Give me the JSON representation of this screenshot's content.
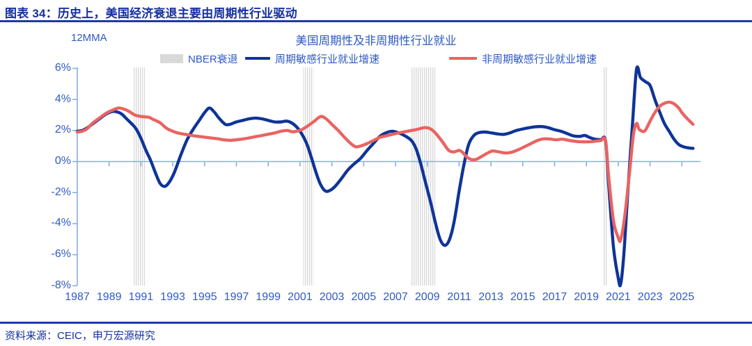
{
  "header": {
    "title": "图表 34：历史上，美国经济衰退主要由周期性行业驱动"
  },
  "footer": {
    "source": "资料来源：CEIC，申万宏源研究"
  },
  "colors": {
    "accent_blue": "#15309F",
    "plot_text_blue": "#2E59C4",
    "cyclical_line": "#0F3498",
    "noncyclical_line": "#EA6361",
    "axis_light_blue": "#85AEDF",
    "recession_band": "#D7D7D7"
  },
  "chart_data": {
    "type": "line",
    "title": "美国周期性及非周期性行业就业",
    "y_axis_note": "12MMA",
    "ylabel": "%",
    "ylim": [
      -8,
      6
    ],
    "xlim": [
      1987,
      2026.1
    ],
    "grid": false,
    "legend_position": "top",
    "y_ticks": [
      6,
      4,
      2,
      0,
      -2,
      -4,
      -6,
      -8
    ],
    "y_tick_labels": [
      "6%",
      "4%",
      "2%",
      "0%",
      "-2%",
      "-4%",
      "-6%",
      "-8%"
    ],
    "x_ticks": [
      1987,
      1989,
      1991,
      1993,
      1995,
      1997,
      1999,
      2001,
      2003,
      2005,
      2007,
      2009,
      2011,
      2013,
      2015,
      2017,
      2019,
      2021,
      2023,
      2025
    ],
    "legend": [
      {
        "label": "NBER衰退",
        "type": "band",
        "color": "#D9D9D9"
      },
      {
        "label": "周期敏感行业就业增速",
        "type": "line",
        "color": "#0F3498"
      },
      {
        "label": "非周期敏感行业就业增速",
        "type": "line",
        "color": "#EA6361"
      }
    ],
    "recession_bands": [
      [
        1990.55,
        1991.25
      ],
      [
        2001.2,
        2001.85
      ],
      [
        2007.95,
        2009.5
      ],
      [
        2020.08,
        2020.33
      ]
    ],
    "series": [
      {
        "name": "周期敏感行业就业增速",
        "color": "#0F3498",
        "points": [
          [
            1987.0,
            1.95
          ],
          [
            1987.3,
            2.0
          ],
          [
            1987.6,
            2.15
          ],
          [
            1988.0,
            2.45
          ],
          [
            1988.4,
            2.75
          ],
          [
            1988.8,
            3.05
          ],
          [
            1989.2,
            3.22
          ],
          [
            1989.5,
            3.2
          ],
          [
            1989.8,
            3.05
          ],
          [
            1990.1,
            2.75
          ],
          [
            1990.4,
            2.45
          ],
          [
            1990.7,
            2.1
          ],
          [
            1991.0,
            1.5
          ],
          [
            1991.3,
            0.75
          ],
          [
            1991.6,
            0.1
          ],
          [
            1991.9,
            -0.7
          ],
          [
            1992.2,
            -1.4
          ],
          [
            1992.5,
            -1.6
          ],
          [
            1992.8,
            -1.3
          ],
          [
            1993.1,
            -0.7
          ],
          [
            1993.5,
            0.4
          ],
          [
            1993.9,
            1.4
          ],
          [
            1994.3,
            2.1
          ],
          [
            1994.7,
            2.7
          ],
          [
            1995.0,
            3.15
          ],
          [
            1995.3,
            3.45
          ],
          [
            1995.6,
            3.2
          ],
          [
            1995.9,
            2.8
          ],
          [
            1996.3,
            2.4
          ],
          [
            1996.6,
            2.4
          ],
          [
            1997.0,
            2.55
          ],
          [
            1997.4,
            2.65
          ],
          [
            1997.8,
            2.75
          ],
          [
            1998.2,
            2.8
          ],
          [
            1998.6,
            2.75
          ],
          [
            1999.0,
            2.65
          ],
          [
            1999.4,
            2.55
          ],
          [
            1999.8,
            2.55
          ],
          [
            2000.2,
            2.6
          ],
          [
            2000.6,
            2.4
          ],
          [
            2001.0,
            1.95
          ],
          [
            2001.4,
            1.2
          ],
          [
            2001.7,
            0.3
          ],
          [
            2002.0,
            -0.7
          ],
          [
            2002.3,
            -1.5
          ],
          [
            2002.6,
            -1.9
          ],
          [
            2002.9,
            -1.85
          ],
          [
            2003.2,
            -1.6
          ],
          [
            2003.6,
            -1.1
          ],
          [
            2004.0,
            -0.55
          ],
          [
            2004.4,
            -0.15
          ],
          [
            2004.8,
            0.2
          ],
          [
            2005.2,
            0.7
          ],
          [
            2005.6,
            1.15
          ],
          [
            2006.0,
            1.6
          ],
          [
            2006.4,
            1.85
          ],
          [
            2006.8,
            1.95
          ],
          [
            2007.2,
            1.85
          ],
          [
            2007.6,
            1.65
          ],
          [
            2008.0,
            1.35
          ],
          [
            2008.3,
            0.8
          ],
          [
            2008.6,
            -0.2
          ],
          [
            2008.9,
            -1.4
          ],
          [
            2009.2,
            -2.6
          ],
          [
            2009.5,
            -3.9
          ],
          [
            2009.8,
            -5.0
          ],
          [
            2010.1,
            -5.4
          ],
          [
            2010.4,
            -5.0
          ],
          [
            2010.7,
            -3.8
          ],
          [
            2011.0,
            -1.9
          ],
          [
            2011.3,
            -0.2
          ],
          [
            2011.6,
            1.1
          ],
          [
            2011.9,
            1.65
          ],
          [
            2012.2,
            1.85
          ],
          [
            2012.6,
            1.9
          ],
          [
            2013.0,
            1.85
          ],
          [
            2013.4,
            1.78
          ],
          [
            2013.8,
            1.75
          ],
          [
            2014.2,
            1.85
          ],
          [
            2014.6,
            2.0
          ],
          [
            2015.0,
            2.1
          ],
          [
            2015.4,
            2.18
          ],
          [
            2015.8,
            2.24
          ],
          [
            2016.2,
            2.25
          ],
          [
            2016.6,
            2.18
          ],
          [
            2017.0,
            2.05
          ],
          [
            2017.4,
            1.95
          ],
          [
            2017.8,
            1.8
          ],
          [
            2018.2,
            1.65
          ],
          [
            2018.6,
            1.62
          ],
          [
            2018.9,
            1.68
          ],
          [
            2019.2,
            1.55
          ],
          [
            2019.5,
            1.45
          ],
          [
            2019.9,
            1.4
          ],
          [
            2020.2,
            1.35
          ],
          [
            2020.4,
            -1.5
          ],
          [
            2020.7,
            -5.5
          ],
          [
            2021.0,
            -7.5
          ],
          [
            2021.15,
            -7.9
          ],
          [
            2021.35,
            -6.0
          ],
          [
            2021.6,
            -2.0
          ],
          [
            2021.9,
            2.5
          ],
          [
            2022.15,
            5.95
          ],
          [
            2022.4,
            5.4
          ],
          [
            2022.7,
            5.15
          ],
          [
            2023.0,
            4.9
          ],
          [
            2023.3,
            4.0
          ],
          [
            2023.6,
            3.2
          ],
          [
            2023.9,
            2.45
          ],
          [
            2024.2,
            1.95
          ],
          [
            2024.5,
            1.45
          ],
          [
            2024.8,
            1.1
          ],
          [
            2025.1,
            0.95
          ],
          [
            2025.4,
            0.88
          ],
          [
            2025.7,
            0.85
          ]
        ]
      },
      {
        "name": "非周期敏感行业就业增速",
        "color": "#EA6361",
        "points": [
          [
            1987.0,
            1.9
          ],
          [
            1987.3,
            1.95
          ],
          [
            1987.6,
            2.1
          ],
          [
            1988.0,
            2.5
          ],
          [
            1988.4,
            2.8
          ],
          [
            1988.8,
            3.1
          ],
          [
            1989.2,
            3.3
          ],
          [
            1989.6,
            3.45
          ],
          [
            1990.0,
            3.35
          ],
          [
            1990.3,
            3.2
          ],
          [
            1990.6,
            3.0
          ],
          [
            1990.9,
            2.92
          ],
          [
            1991.2,
            2.88
          ],
          [
            1991.5,
            2.85
          ],
          [
            1991.8,
            2.7
          ],
          [
            1992.2,
            2.5
          ],
          [
            1992.6,
            2.15
          ],
          [
            1993.0,
            1.95
          ],
          [
            1993.4,
            1.82
          ],
          [
            1993.8,
            1.75
          ],
          [
            1994.2,
            1.68
          ],
          [
            1994.6,
            1.62
          ],
          [
            1995.0,
            1.57
          ],
          [
            1995.4,
            1.52
          ],
          [
            1995.8,
            1.47
          ],
          [
            1996.2,
            1.4
          ],
          [
            1996.6,
            1.37
          ],
          [
            1997.0,
            1.4
          ],
          [
            1997.4,
            1.45
          ],
          [
            1997.8,
            1.52
          ],
          [
            1998.2,
            1.6
          ],
          [
            1998.6,
            1.68
          ],
          [
            1999.0,
            1.76
          ],
          [
            1999.4,
            1.84
          ],
          [
            1999.8,
            1.95
          ],
          [
            2000.2,
            2.0
          ],
          [
            2000.5,
            1.92
          ],
          [
            2000.8,
            1.95
          ],
          [
            2001.1,
            2.05
          ],
          [
            2001.5,
            2.3
          ],
          [
            2001.9,
            2.6
          ],
          [
            2002.2,
            2.85
          ],
          [
            2002.4,
            2.9
          ],
          [
            2002.7,
            2.7
          ],
          [
            2003.0,
            2.4
          ],
          [
            2003.4,
            2.0
          ],
          [
            2003.8,
            1.55
          ],
          [
            2004.2,
            1.15
          ],
          [
            2004.5,
            0.95
          ],
          [
            2004.8,
            1.0
          ],
          [
            2005.2,
            1.15
          ],
          [
            2005.6,
            1.35
          ],
          [
            2006.0,
            1.55
          ],
          [
            2006.4,
            1.65
          ],
          [
            2006.8,
            1.75
          ],
          [
            2007.2,
            1.85
          ],
          [
            2007.6,
            1.92
          ],
          [
            2008.0,
            2.0
          ],
          [
            2008.4,
            2.08
          ],
          [
            2008.8,
            2.18
          ],
          [
            2009.1,
            2.15
          ],
          [
            2009.4,
            1.95
          ],
          [
            2009.7,
            1.6
          ],
          [
            2010.0,
            1.2
          ],
          [
            2010.2,
            0.9
          ],
          [
            2010.4,
            0.68
          ],
          [
            2010.7,
            0.62
          ],
          [
            2011.0,
            0.72
          ],
          [
            2011.2,
            0.6
          ],
          [
            2011.5,
            0.28
          ],
          [
            2011.8,
            0.12
          ],
          [
            2012.1,
            0.15
          ],
          [
            2012.4,
            0.32
          ],
          [
            2012.8,
            0.55
          ],
          [
            2013.1,
            0.68
          ],
          [
            2013.5,
            0.62
          ],
          [
            2013.9,
            0.55
          ],
          [
            2014.3,
            0.6
          ],
          [
            2014.7,
            0.75
          ],
          [
            2015.1,
            0.95
          ],
          [
            2015.5,
            1.15
          ],
          [
            2015.9,
            1.35
          ],
          [
            2016.3,
            1.46
          ],
          [
            2016.7,
            1.45
          ],
          [
            2017.1,
            1.4
          ],
          [
            2017.5,
            1.44
          ],
          [
            2017.9,
            1.36
          ],
          [
            2018.3,
            1.3
          ],
          [
            2018.7,
            1.27
          ],
          [
            2019.1,
            1.27
          ],
          [
            2019.5,
            1.3
          ],
          [
            2019.9,
            1.35
          ],
          [
            2020.2,
            1.35
          ],
          [
            2020.4,
            -1.0
          ],
          [
            2020.7,
            -3.8
          ],
          [
            2021.0,
            -4.9
          ],
          [
            2021.15,
            -5.05
          ],
          [
            2021.4,
            -3.6
          ],
          [
            2021.7,
            -0.8
          ],
          [
            2021.95,
            1.7
          ],
          [
            2022.15,
            2.45
          ],
          [
            2022.3,
            2.1
          ],
          [
            2022.5,
            1.95
          ],
          [
            2022.7,
            2.0
          ],
          [
            2023.0,
            2.6
          ],
          [
            2023.3,
            3.15
          ],
          [
            2023.6,
            3.55
          ],
          [
            2023.9,
            3.75
          ],
          [
            2024.2,
            3.82
          ],
          [
            2024.5,
            3.72
          ],
          [
            2024.8,
            3.45
          ],
          [
            2025.0,
            3.15
          ],
          [
            2025.3,
            2.8
          ],
          [
            2025.5,
            2.6
          ],
          [
            2025.7,
            2.4
          ]
        ]
      }
    ]
  }
}
